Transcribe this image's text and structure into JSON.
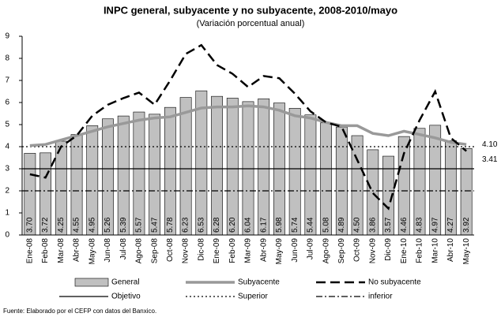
{
  "chart_data": {
    "type": "bar",
    "title": "INPC general, subyacente y no subyacente, 2008-2010/mayo",
    "subtitle": "(Variación porcentual anual)",
    "footer": "Fuente: Elaborado por el CEFP con datos del Banxico.",
    "categories": [
      "Ene-08",
      "Feb-08",
      "Mar-08",
      "Abr-08",
      "May-08",
      "Jun-08",
      "Jul-08",
      "Ago-08",
      "Sep-08",
      "Oct-08",
      "Nov-08",
      "Dic-08",
      "Ene-09",
      "Feb-09",
      "Mar-09",
      "Abr-09",
      "May-09",
      "Jun-09",
      "Jul-09",
      "Ago-09",
      "Sep-09",
      "Oct-09",
      "Nov-09",
      "Dic-09",
      "Ene-10",
      "Feb-10",
      "Mar-10",
      "Abr-10",
      "May-10"
    ],
    "series": [
      {
        "name": "General",
        "type": "bar",
        "color": "#c0c0c0",
        "values": [
          3.7,
          3.72,
          4.25,
          4.55,
          4.95,
          5.26,
          5.39,
          5.57,
          5.47,
          5.78,
          6.23,
          6.53,
          6.28,
          6.2,
          6.04,
          6.17,
          5.98,
          5.74,
          5.44,
          5.08,
          4.89,
          4.5,
          3.86,
          3.57,
          4.46,
          4.83,
          4.97,
          4.27,
          3.92
        ],
        "value_labels": [
          "3.70",
          "3.72",
          "4.25",
          "4.55",
          "4.95",
          "5.26",
          "5.39",
          "5.57",
          "5.47",
          "5.78",
          "6.23",
          "6.53",
          "6.28",
          "6.20",
          "6.04",
          "6.17",
          "5.98",
          "5.74",
          "5.44",
          "5.08",
          "4.89",
          "4.50",
          "3.86",
          "3.57",
          "4.46",
          "4.83",
          "4.97",
          "4.27",
          "3.92"
        ]
      },
      {
        "name": "Subyacente",
        "type": "line",
        "color": "#999999",
        "style": "double",
        "values": [
          4.05,
          4.1,
          4.3,
          4.5,
          4.7,
          4.9,
          5.05,
          5.2,
          5.3,
          5.35,
          5.55,
          5.75,
          5.8,
          5.8,
          5.85,
          5.8,
          5.65,
          5.4,
          5.3,
          5.1,
          4.95,
          4.95,
          4.6,
          4.5,
          4.7,
          4.55,
          4.4,
          4.2,
          4.1
        ]
      },
      {
        "name": "No subyacente",
        "type": "line",
        "color": "#000000",
        "style": "dashed",
        "values": [
          2.75,
          2.6,
          4.0,
          4.5,
          5.4,
          5.9,
          6.2,
          6.45,
          5.9,
          7.0,
          8.2,
          8.6,
          7.7,
          7.3,
          6.7,
          7.2,
          7.1,
          6.4,
          5.6,
          5.1,
          4.9,
          3.4,
          1.9,
          1.2,
          3.7,
          5.2,
          6.5,
          4.4,
          3.8
        ]
      }
    ],
    "reference_lines": [
      {
        "name": "Objetivo",
        "value": 3,
        "style": "solid",
        "color": "#000000"
      },
      {
        "name": "Superior",
        "value": 4,
        "style": "dotted",
        "color": "#000000"
      },
      {
        "name": "inferior",
        "value": 2,
        "style": "dashdot",
        "color": "#000000"
      }
    ],
    "annotations": [
      {
        "text": "4.10",
        "value": 4.1
      },
      {
        "text": "3.41",
        "value": 3.41
      }
    ],
    "ylim": [
      0,
      9
    ],
    "yticks": [
      0,
      1,
      2,
      3,
      4,
      5,
      6,
      7,
      8,
      9
    ],
    "grid": false
  }
}
